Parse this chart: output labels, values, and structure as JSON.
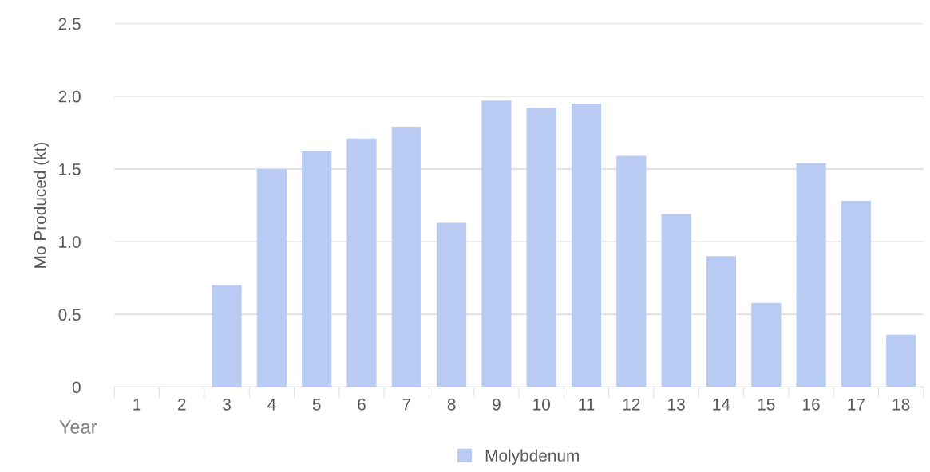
{
  "chart_data": {
    "type": "bar",
    "xlabel": "Year",
    "ylabel": "Mo Produced (kt)",
    "categories": [
      "1",
      "2",
      "3",
      "4",
      "5",
      "6",
      "7",
      "8",
      "9",
      "10",
      "11",
      "12",
      "13",
      "14",
      "15",
      "16",
      "17",
      "18"
    ],
    "series": [
      {
        "name": "Molybdenum",
        "color": "#bacbf3",
        "values": [
          0,
          0,
          0.7,
          1.5,
          1.62,
          1.71,
          1.79,
          1.13,
          1.97,
          1.92,
          1.95,
          1.59,
          1.19,
          0.9,
          0.58,
          1.54,
          1.28,
          0.36
        ]
      }
    ],
    "ylim": [
      0,
      2.5
    ],
    "yticks": [
      0,
      {
        "value": 0.5,
        "label": "0.5"
      },
      {
        "value": 1,
        "label": "1.0"
      },
      {
        "value": 1.5,
        "label": "1.5"
      },
      {
        "value": 2,
        "label": "2.0"
      },
      {
        "value": 2.5,
        "label": "2.5"
      }
    ],
    "grid": "y",
    "legend": "bottom"
  }
}
